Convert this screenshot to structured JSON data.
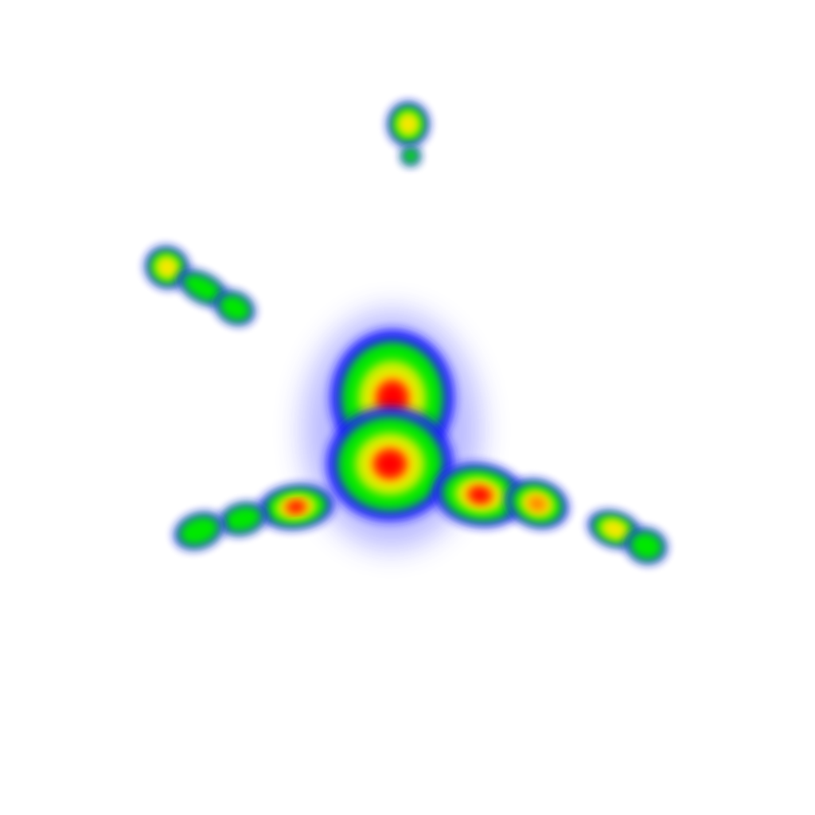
{
  "view": {
    "type": "attention heatmap",
    "background_color": "#ffffff",
    "colormap": [
      "#0000ff",
      "#00ff00",
      "#ffff00",
      "#ff0000"
    ]
  },
  "hotspots": [
    {
      "id": "top-point",
      "intensity": 0.6
    },
    {
      "id": "top-point-tail",
      "intensity": 0.2
    },
    {
      "id": "left-wing-segment-a",
      "intensity": 0.65
    },
    {
      "id": "left-wing-segment-b",
      "intensity": 0.5
    },
    {
      "id": "left-wing-segment-c",
      "intensity": 0.5
    },
    {
      "id": "body-upper",
      "intensity": 1.0
    },
    {
      "id": "body-lower",
      "intensity": 1.0
    },
    {
      "id": "left-branch-hot",
      "intensity": 0.95
    },
    {
      "id": "left-branch-mid",
      "intensity": 0.5
    },
    {
      "id": "left-branch-tip",
      "intensity": 0.5
    },
    {
      "id": "right-branch-hot",
      "intensity": 0.95
    },
    {
      "id": "right-branch-mid",
      "intensity": 0.85
    },
    {
      "id": "right-tip-a",
      "intensity": 0.6
    },
    {
      "id": "right-tip-b",
      "intensity": 0.5
    }
  ]
}
